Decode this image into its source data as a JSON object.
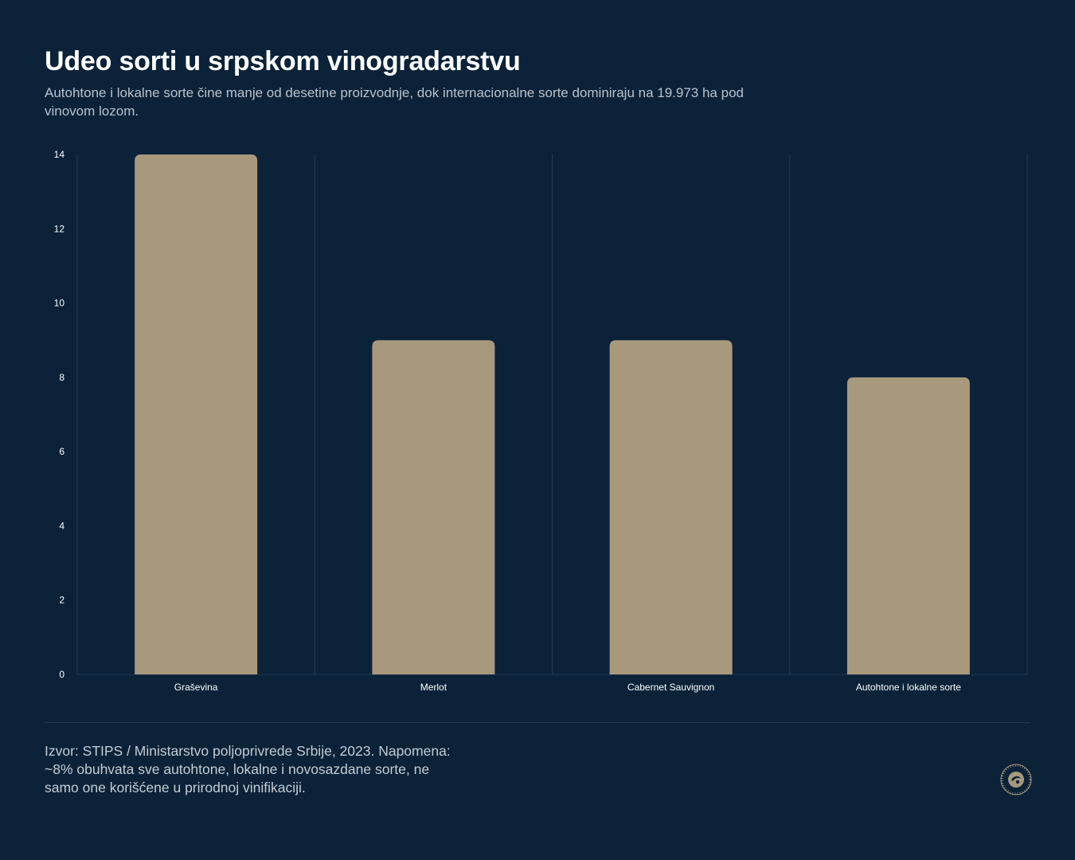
{
  "header": {
    "title": "Udeo sorti u srpskom vinogradarstvu",
    "subtitle": "Autohtone i lokalne sorte čine manje od desetine proizvodnje, dok internacionalne sorte dominiraju na 19.973 ha pod vinovom lozom."
  },
  "footer": {
    "source": "Izvor: STIPS / Ministarstvo poljoprivrede Srbije, 2023. Napomena: ~8% obuhvata sve autohtone, lokalne i novosazdane sorte, ne samo one korišćene u prirodnoj vinifikaciji."
  },
  "colors": {
    "background": "#0b2239",
    "bar": "#a8987c",
    "grid": "#1f3a55",
    "tick_text": "#ffffff"
  },
  "chart_data": {
    "type": "bar",
    "categories": [
      "Graševina",
      "Merlot",
      "Cabernet Sauvignon",
      "Autohtone i lokalne sorte"
    ],
    "values": [
      14,
      9,
      9,
      8
    ],
    "title": "",
    "xlabel": "",
    "ylabel": "",
    "ylim": [
      0,
      14
    ],
    "yticks": [
      0,
      2,
      4,
      6,
      8,
      10,
      12,
      14
    ],
    "grid": "vertical",
    "legend": "none"
  },
  "logo": {
    "icon": "seal-logo-icon"
  }
}
